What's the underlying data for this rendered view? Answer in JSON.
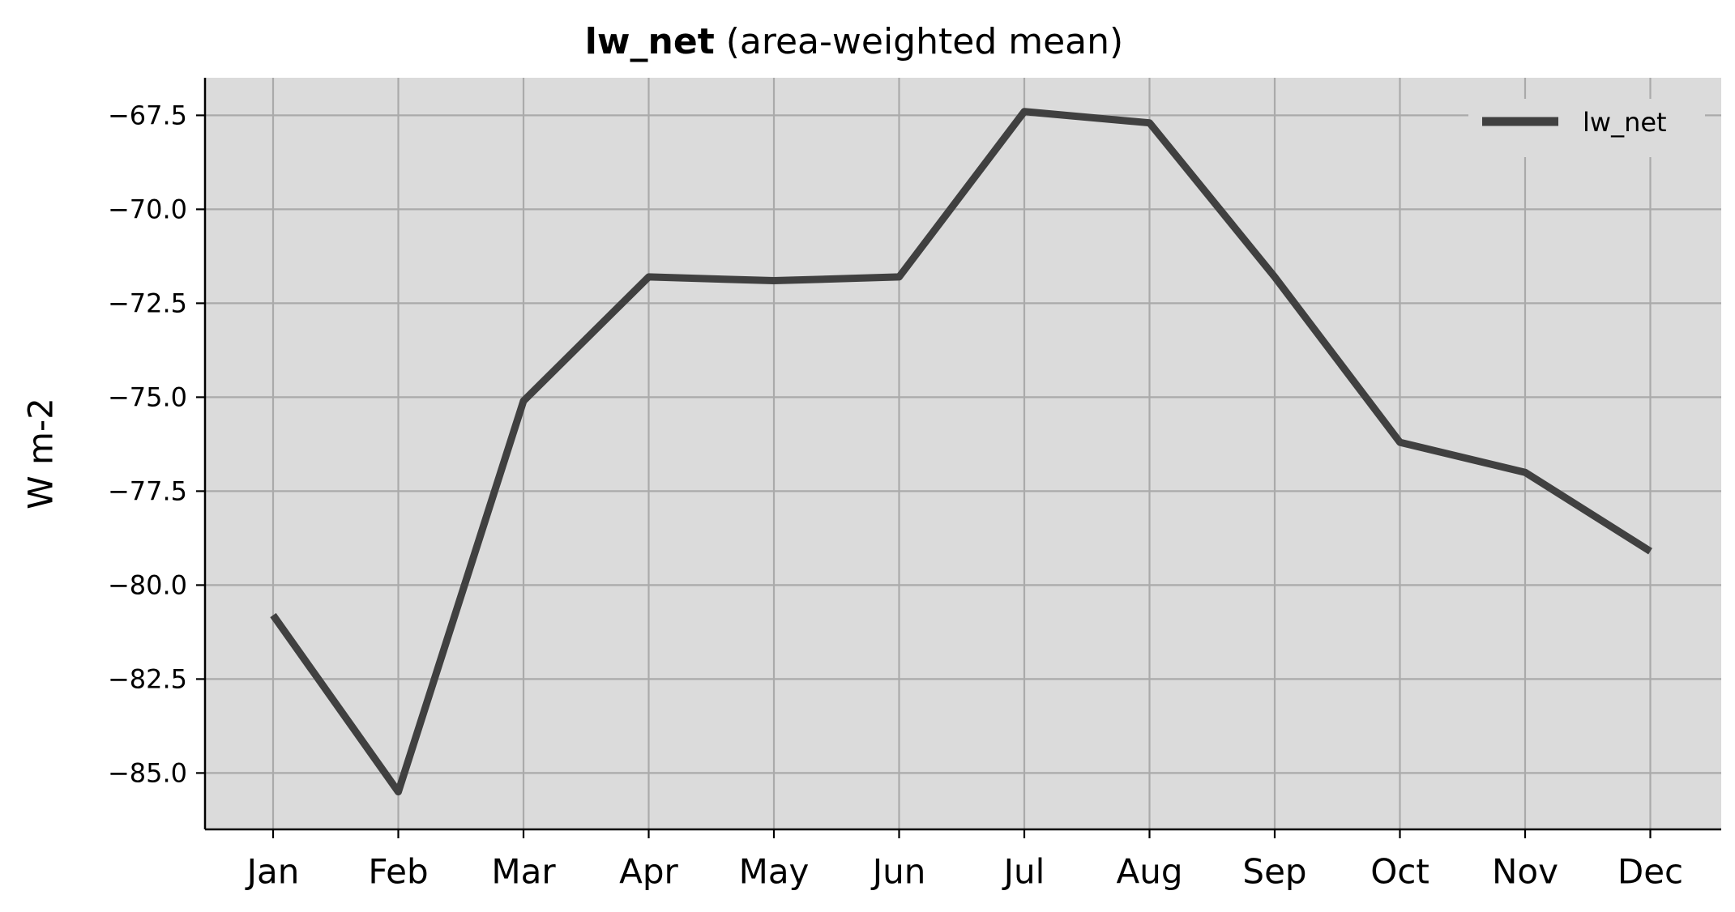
{
  "chart_data": {
    "type": "line",
    "title_bold": "lw_net",
    "title_rest": "(area-weighted mean)",
    "xlabel": "",
    "ylabel": "W m-2",
    "categories": [
      "Jan",
      "Feb",
      "Mar",
      "Apr",
      "May",
      "Jun",
      "Jul",
      "Aug",
      "Sep",
      "Oct",
      "Nov",
      "Dec"
    ],
    "series": [
      {
        "name": "lw_net",
        "color": "#404040",
        "values": [
          -80.8,
          -85.5,
          -75.1,
          -71.8,
          -71.9,
          -71.8,
          -67.4,
          -67.7,
          -71.8,
          -76.2,
          -77.0,
          -79.1
        ]
      }
    ],
    "ylim": [
      -86.5,
      -66.5
    ],
    "yticks": [
      -85.0,
      -82.5,
      -80.0,
      -77.5,
      -75.0,
      -72.5,
      -70.0,
      -67.5
    ],
    "ytick_labels": [
      "−85.0",
      "−82.5",
      "−80.0",
      "−77.5",
      "−75.0",
      "−72.5",
      "−70.0",
      "−67.5"
    ],
    "grid": true,
    "legend_position": "top-right",
    "plot_background": "#dbdbdb",
    "grid_color": "#aaaaaa"
  }
}
